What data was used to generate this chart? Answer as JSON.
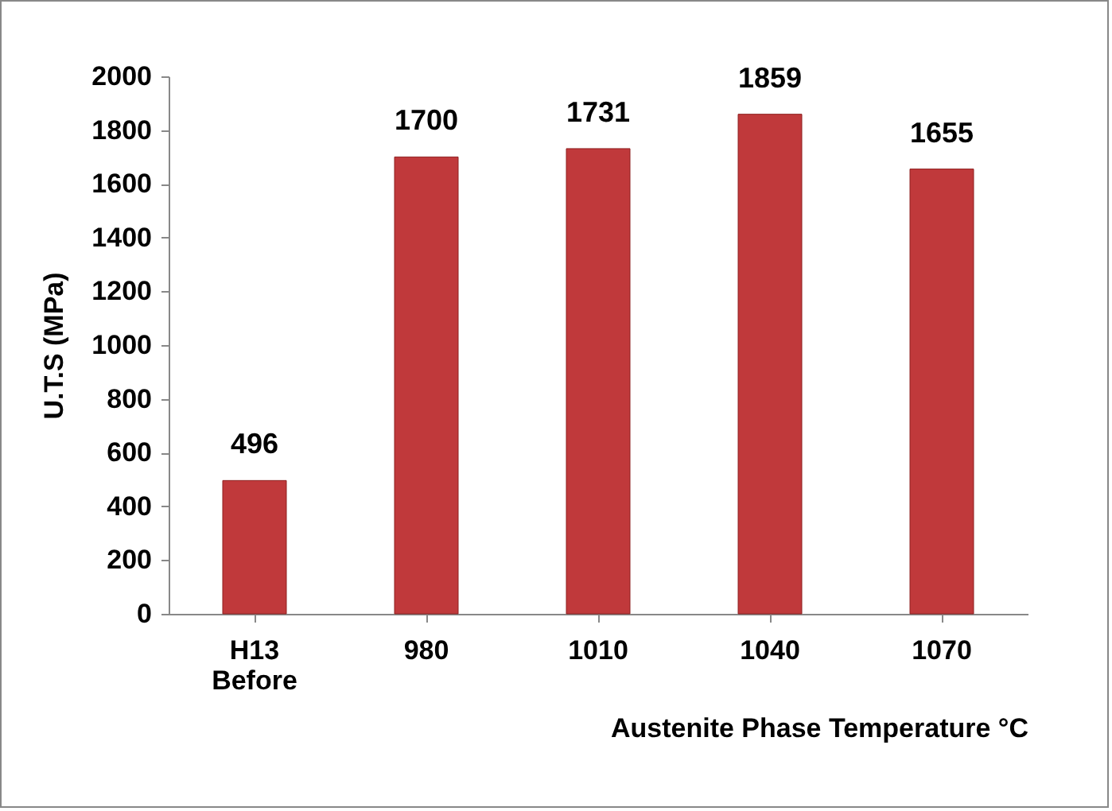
{
  "chart_data": {
    "type": "bar",
    "xlabel": "Austenite Phase Temperature °C",
    "ylabel": "U.T.S (MPa)",
    "categories": [
      "H13 Before",
      "980",
      "1010",
      "1040",
      "1070"
    ],
    "values": [
      496,
      1700,
      1731,
      1859,
      1655
    ],
    "color": "#c0393b",
    "ylim": [
      0,
      2000
    ],
    "yticks": [
      0,
      200,
      400,
      600,
      800,
      1000,
      1200,
      1400,
      1600,
      1800,
      2000
    ],
    "grid": false,
    "data_labels": true
  }
}
